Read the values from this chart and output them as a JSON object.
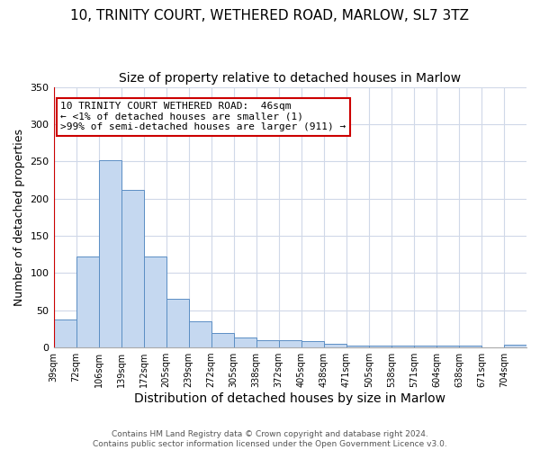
{
  "title": "10, TRINITY COURT, WETHERED ROAD, MARLOW, SL7 3TZ",
  "subtitle": "Size of property relative to detached houses in Marlow",
  "xlabel": "Distribution of detached houses by size in Marlow",
  "ylabel": "Number of detached properties",
  "bin_labels": [
    "39sqm",
    "72sqm",
    "106sqm",
    "139sqm",
    "172sqm",
    "205sqm",
    "239sqm",
    "272sqm",
    "305sqm",
    "338sqm",
    "372sqm",
    "405sqm",
    "438sqm",
    "471sqm",
    "505sqm",
    "538sqm",
    "571sqm",
    "604sqm",
    "638sqm",
    "671sqm",
    "704sqm"
  ],
  "bar_heights": [
    38,
    122,
    252,
    212,
    122,
    65,
    35,
    20,
    14,
    10,
    10,
    9,
    5,
    3,
    2,
    2,
    2,
    2,
    2,
    0,
    4
  ],
  "bar_color": "#c5d8f0",
  "bar_edge_color": "#5b8ec4",
  "property_line_color": "#cc0000",
  "annotation_text": "10 TRINITY COURT WETHERED ROAD:  46sqm\n← <1% of detached houses are smaller (1)\n>99% of semi-detached houses are larger (911) →",
  "annotation_box_color": "#ffffff",
  "annotation_box_edge_color": "#cc0000",
  "ylim": [
    0,
    350
  ],
  "yticks": [
    0,
    50,
    100,
    150,
    200,
    250,
    300,
    350
  ],
  "background_color": "#ffffff",
  "grid_color": "#d0d8e8",
  "footer_text": "Contains HM Land Registry data © Crown copyright and database right 2024.\nContains public sector information licensed under the Open Government Licence v3.0.",
  "title_fontsize": 11,
  "subtitle_fontsize": 10,
  "ylabel_fontsize": 9,
  "xlabel_fontsize": 10
}
